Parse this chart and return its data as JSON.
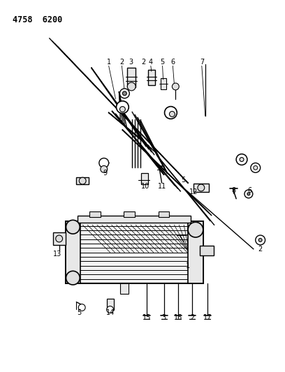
{
  "title": "4758  6200",
  "bg_color": "#ffffff",
  "line_color": "#000000",
  "fig_width": 4.08,
  "fig_height": 5.33,
  "dpi": 100
}
